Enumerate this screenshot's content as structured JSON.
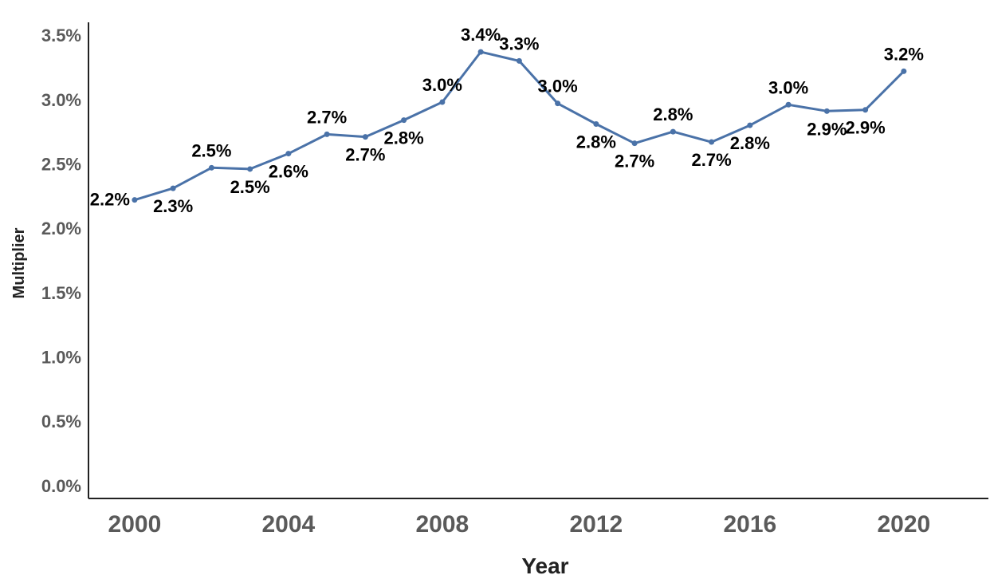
{
  "chart_data": {
    "type": "line",
    "title": "",
    "xlabel": "Year",
    "ylabel": "Multiplier",
    "x": [
      2000,
      2001,
      2002,
      2003,
      2004,
      2005,
      2006,
      2007,
      2008,
      2009,
      2010,
      2011,
      2012,
      2013,
      2014,
      2015,
      2016,
      2017,
      2018,
      2019,
      2020
    ],
    "series": [
      {
        "values": [
          2.22,
          2.31,
          2.47,
          2.46,
          2.58,
          2.73,
          2.71,
          2.84,
          2.98,
          3.37,
          3.3,
          2.97,
          2.81,
          2.66,
          2.75,
          2.67,
          2.8,
          2.96,
          2.91,
          2.92,
          3.22
        ],
        "labels": [
          "2.2%",
          "2.3%",
          "2.5%",
          "2.5%",
          "2.6%",
          "2.7%",
          "2.7%",
          "2.8%",
          "3.0%",
          "3.4%",
          "3.3%",
          "3.0%",
          "2.8%",
          "2.7%",
          "2.8%",
          "2.7%",
          "2.8%",
          "3.0%",
          "2.9%",
          "2.9%",
          "3.2%"
        ],
        "label_positions": [
          "left",
          "below",
          "above",
          "below",
          "below",
          "above",
          "below",
          "below",
          "above",
          "above",
          "above",
          "above",
          "below",
          "below",
          "above",
          "below",
          "below",
          "above",
          "below",
          "below",
          "above"
        ],
        "color": "#4a72a8"
      }
    ],
    "xlim": [
      1998.8,
      2022.2
    ],
    "ylim": [
      -0.1,
      3.6
    ],
    "x_ticks": [
      2000,
      2004,
      2008,
      2012,
      2016,
      2020
    ],
    "x_tick_labels": [
      "2000",
      "2004",
      "2008",
      "2012",
      "2016",
      "2020"
    ],
    "y_ticks": [
      0.0,
      0.5,
      1.0,
      1.5,
      2.0,
      2.5,
      3.0,
      3.5
    ],
    "y_tick_labels": [
      "0.0%",
      "0.5%",
      "1.0%",
      "1.5%",
      "2.0%",
      "2.5%",
      "3.0%",
      "3.5%"
    ],
    "grid": false,
    "legend": "none"
  }
}
